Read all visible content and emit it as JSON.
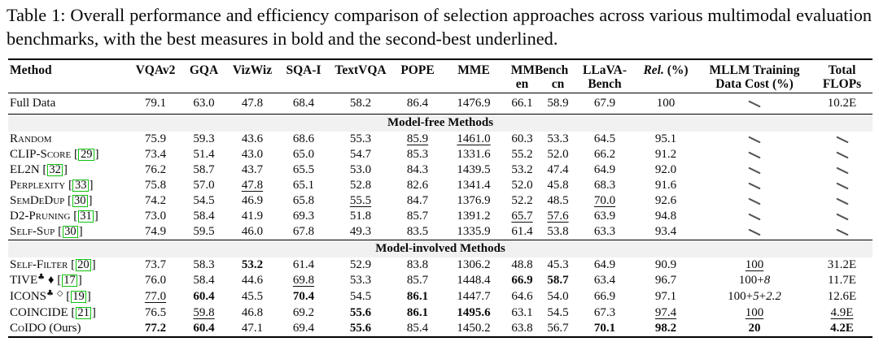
{
  "caption": "Table 1: Overall performance and efficiency comparison of selection approaches across various multimodal evaluation benchmarks, with the best measures in bold and the second-best underlined.",
  "colors": {
    "citation_link_green": "#0ec20e",
    "section_band_gray": "#f1f1f1",
    "rule_black": "#000000"
  },
  "table": {
    "header": {
      "method": "Method",
      "simple": [
        "VQAv2",
        "GQA",
        "VizWiz",
        "SQA-I",
        "TextVQA",
        "POPE",
        "MME"
      ],
      "mmbench": "MMBench",
      "mmbench_sub": [
        "en",
        "cn"
      ],
      "llava_lines": [
        "LLaVA-",
        "Bench"
      ],
      "rel_italic": "Rel.",
      "rel_rest": " (%)",
      "mllm_lines": [
        "MLLM Training",
        "Data Cost (%)"
      ],
      "total_lines": [
        "Total",
        "FLOPs"
      ]
    },
    "rows": [
      {
        "cls": "fulldata",
        "method": [
          {
            "t": "Full Data"
          }
        ],
        "cells": [
          "79.1",
          "63.0",
          "47.8",
          "68.4",
          "58.2",
          "86.4",
          "1476.9",
          "66.1",
          "58.9",
          "67.9",
          "100",
          {
            "diag": 1
          },
          "10.2E"
        ]
      },
      {
        "section": "Model-free Methods"
      },
      {
        "method": [
          {
            "t": "Random",
            "sc": 1
          }
        ],
        "cells": [
          "75.9",
          "59.3",
          "43.6",
          "68.6",
          "55.3",
          {
            "t": "85.9",
            "u": 1
          },
          {
            "t": "1461.0",
            "u": 1
          },
          "60.3",
          "53.3",
          "64.5",
          "95.1",
          {
            "diag": 1
          },
          {
            "diag": 1
          }
        ]
      },
      {
        "method": [
          {
            "t": "CLIP-Score",
            "sc": 1
          },
          {
            "t": " "
          },
          {
            "cite": "29"
          }
        ],
        "cells": [
          "73.4",
          "51.4",
          "43.0",
          "65.0",
          "54.7",
          "85.3",
          "1331.6",
          "55.2",
          "52.0",
          "66.2",
          "91.2",
          {
            "diag": 1
          },
          {
            "diag": 1
          }
        ]
      },
      {
        "method": [
          {
            "t": "EL2N",
            "sc": 1
          },
          {
            "t": " "
          },
          {
            "cite": "32"
          }
        ],
        "cells": [
          "76.2",
          "58.7",
          "43.7",
          "65.5",
          "53.0",
          "84.3",
          "1439.5",
          "53.2",
          "47.4",
          "64.9",
          "92.0",
          {
            "diag": 1
          },
          {
            "diag": 1
          }
        ]
      },
      {
        "method": [
          {
            "t": "Perplexity",
            "sc": 1
          },
          {
            "t": " "
          },
          {
            "cite": "33"
          }
        ],
        "cells": [
          "75.8",
          "57.0",
          {
            "t": "47.8",
            "u": 1
          },
          "65.1",
          "52.8",
          "82.6",
          "1341.4",
          "52.0",
          "45.8",
          "68.3",
          "91.6",
          {
            "diag": 1
          },
          {
            "diag": 1
          }
        ]
      },
      {
        "method": [
          {
            "t": "SemDeDup",
            "sc": 1
          },
          {
            "t": " "
          },
          {
            "cite": "30"
          }
        ],
        "cells": [
          "74.2",
          "54.5",
          "46.9",
          "65.8",
          {
            "t": "55.5",
            "u": 1
          },
          "84.7",
          "1376.9",
          "52.2",
          "48.5",
          {
            "t": "70.0",
            "u": 1
          },
          "92.6",
          {
            "diag": 1
          },
          {
            "diag": 1
          }
        ]
      },
      {
        "method": [
          {
            "t": "D2-Pruning",
            "sc": 1
          },
          {
            "t": " "
          },
          {
            "cite": "31"
          }
        ],
        "cells": [
          "73.0",
          "58.4",
          "41.9",
          "69.3",
          "51.8",
          "85.7",
          "1391.2",
          {
            "t": "65.7",
            "u": 1
          },
          {
            "t": "57.6",
            "u": 1
          },
          "63.9",
          "94.8",
          {
            "diag": 1
          },
          {
            "diag": 1
          }
        ]
      },
      {
        "method": [
          {
            "t": "Self-Sup",
            "sc": 1
          },
          {
            "t": " "
          },
          {
            "cite": "30"
          }
        ],
        "cells": [
          "74.9",
          "59.5",
          "46.0",
          "67.8",
          "49.3",
          "83.5",
          "1335.9",
          "61.4",
          "53.8",
          "63.3",
          "93.4",
          {
            "diag": 1
          },
          {
            "diag": 1
          }
        ]
      },
      {
        "section": "Model-involved Methods"
      },
      {
        "method": [
          {
            "t": "Self-Filter",
            "sc": 1
          },
          {
            "t": " "
          },
          {
            "cite": "20"
          }
        ],
        "cells": [
          "73.7",
          "58.3",
          {
            "t": "53.2",
            "b": 1
          },
          "61.4",
          "52.9",
          "83.8",
          "1306.2",
          "48.8",
          "45.3",
          "64.9",
          "90.9",
          {
            "t": "100",
            "u": 1
          },
          "31.2E"
        ]
      },
      {
        "method": [
          {
            "t": "TIVE",
            "sc": 1
          },
          {
            "t": "♣",
            "sup": 1
          },
          {
            "t": " ♦"
          },
          {
            "t": " "
          },
          {
            "cite": "17"
          }
        ],
        "cells": [
          "76.0",
          "58.4",
          "44.6",
          {
            "t": "69.8",
            "u": 1
          },
          "53.3",
          "85.7",
          "1448.4",
          {
            "t": "66.9",
            "b": 1
          },
          {
            "t": "58.7",
            "b": 1
          },
          "63.4",
          "96.7",
          {
            "parts": [
              {
                "t": "100+"
              },
              {
                "t": "8",
                "i": 1
              }
            ]
          },
          "11.7E"
        ]
      },
      {
        "method": [
          {
            "t": "ICONS",
            "sc": 1
          },
          {
            "t": "♣",
            "sup": 1
          },
          {
            "t": " "
          },
          {
            "t": "◇",
            "sup": 1
          },
          {
            "t": " "
          },
          {
            "cite": "19"
          }
        ],
        "cells": [
          {
            "t": "77.0",
            "u": 1
          },
          {
            "t": "60.4",
            "b": 1
          },
          "45.5",
          {
            "t": "70.4",
            "b": 1
          },
          "54.5",
          {
            "t": "86.1",
            "b": 1
          },
          "1447.7",
          "64.6",
          "54.0",
          "66.9",
          "97.1",
          {
            "parts": [
              {
                "t": "100+"
              },
              {
                "t": "5",
                "i": 1
              },
              {
                "t": "+"
              },
              {
                "t": "2.2",
                "i": 1
              }
            ]
          },
          "12.6E"
        ]
      },
      {
        "method": [
          {
            "t": "COINCIDE",
            "sc": 1
          },
          {
            "t": " "
          },
          {
            "cite": "21"
          }
        ],
        "cells": [
          "76.5",
          {
            "t": "59.8",
            "u": 1
          },
          "46.8",
          "69.2",
          {
            "t": "55.6",
            "b": 1
          },
          {
            "t": "86.1",
            "b": 1
          },
          {
            "t": "1495.6",
            "b": 1
          },
          "63.1",
          "54.5",
          "67.3",
          {
            "t": "97.4",
            "u": 1
          },
          {
            "t": "100",
            "u": 1
          },
          {
            "t": "4.9E",
            "u": 1
          }
        ]
      },
      {
        "method": [
          {
            "t": "CoIDO",
            "sc": 1
          },
          {
            "t": " (Ours)"
          }
        ],
        "cells": [
          {
            "t": "77.2",
            "b": 1
          },
          {
            "t": "60.4",
            "b": 1
          },
          "47.1",
          "69.4",
          {
            "t": "55.6",
            "b": 1
          },
          "85.4",
          "1450.2",
          "63.8",
          "56.7",
          {
            "t": "70.1",
            "b": 1
          },
          {
            "t": "98.2",
            "b": 1
          },
          {
            "t": "20",
            "b": 1
          },
          {
            "t": "4.2E",
            "b": 1
          }
        ]
      }
    ]
  }
}
